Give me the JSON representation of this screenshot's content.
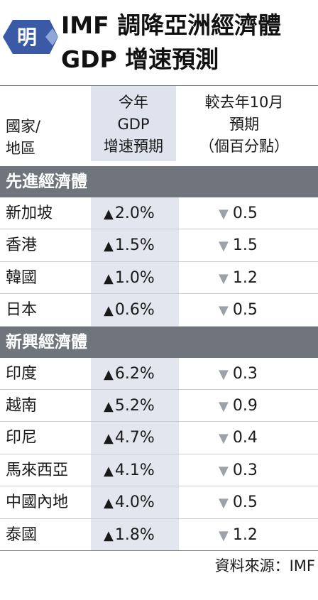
{
  "header": {
    "logo_icon": "newspaper-logo-icon",
    "logo_text": "明",
    "title_line1": "IMF 調降亞洲經濟體",
    "title_line2": "GDP 增速預測",
    "brand_color": "#3b5aa6"
  },
  "table": {
    "headers": {
      "region": [
        "國家/",
        "地區"
      ],
      "col1": [
        "今年",
        "GDP",
        "增速預期"
      ],
      "col2": [
        "較去年10月",
        "預期",
        "（個百分點）"
      ]
    },
    "up_icon": "triangle-up-icon",
    "down_icon": "triangle-down-icon"
  },
  "chart_data": {
    "type": "table",
    "columns": [
      "國家/地區",
      "今年GDP增速預期",
      "較去年10月預期（個百分點）"
    ],
    "groups": [
      {
        "name": "先進經濟體",
        "rows": [
          {
            "region": "新加坡",
            "forecast": "2.0%",
            "forecast_value": 2.0,
            "change": "0.5",
            "change_value": -0.5
          },
          {
            "region": "香港",
            "forecast": "1.5%",
            "forecast_value": 1.5,
            "change": "1.5",
            "change_value": -1.5
          },
          {
            "region": "韓國",
            "forecast": "1.0%",
            "forecast_value": 1.0,
            "change": "1.2",
            "change_value": -1.2
          },
          {
            "region": "日本",
            "forecast": "0.6%",
            "forecast_value": 0.6,
            "change": "0.5",
            "change_value": -0.5
          }
        ]
      },
      {
        "name": "新興經濟體",
        "rows": [
          {
            "region": "印度",
            "forecast": "6.2%",
            "forecast_value": 6.2,
            "change": "0.3",
            "change_value": -0.3
          },
          {
            "region": "越南",
            "forecast": "5.2%",
            "forecast_value": 5.2,
            "change": "0.9",
            "change_value": -0.9
          },
          {
            "region": "印尼",
            "forecast": "4.7%",
            "forecast_value": 4.7,
            "change": "0.4",
            "change_value": -0.4
          },
          {
            "region": "馬來西亞",
            "forecast": "4.1%",
            "forecast_value": 4.1,
            "change": "0.3",
            "change_value": -0.3
          },
          {
            "region": "中國內地",
            "forecast": "4.0%",
            "forecast_value": 4.0,
            "change": "0.5",
            "change_value": -0.5
          },
          {
            "region": "泰國",
            "forecast": "1.8%",
            "forecast_value": 1.8,
            "change": "1.2",
            "change_value": -1.2
          }
        ]
      }
    ],
    "source": "資料來源：IMF"
  }
}
